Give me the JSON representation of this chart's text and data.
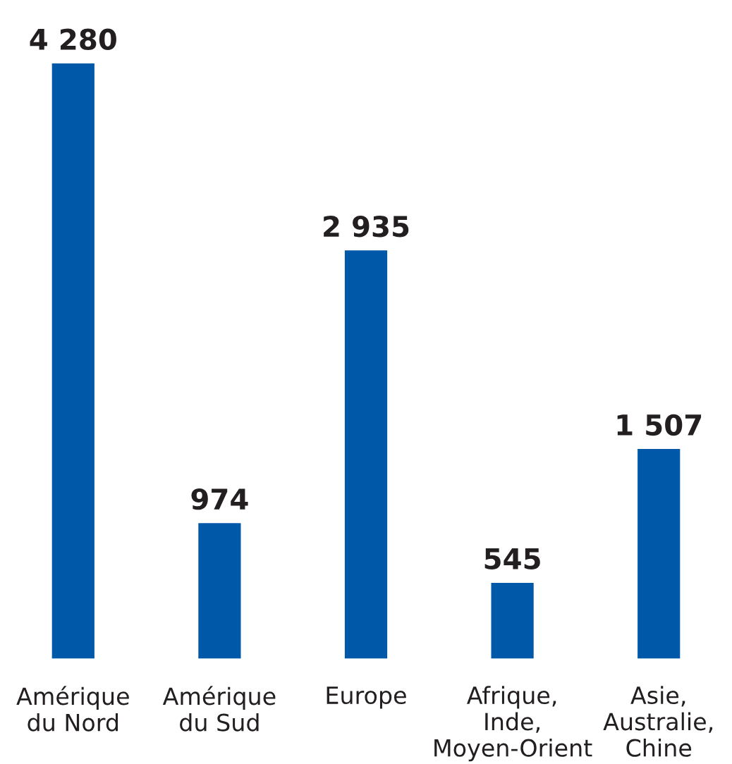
{
  "chart_data": {
    "type": "bar",
    "categories": [
      "Amérique\ndu Nord",
      "Amérique\ndu Sud",
      "Europe",
      "Afrique,\nInde,\nMoyen-Orient",
      "Asie,\nAustralie,\nChine"
    ],
    "values": [
      4280,
      974,
      2935,
      545,
      1507
    ],
    "value_labels": [
      "4 280",
      "974",
      "2 935",
      "545",
      "1 507"
    ],
    "color": "#0058a9"
  }
}
